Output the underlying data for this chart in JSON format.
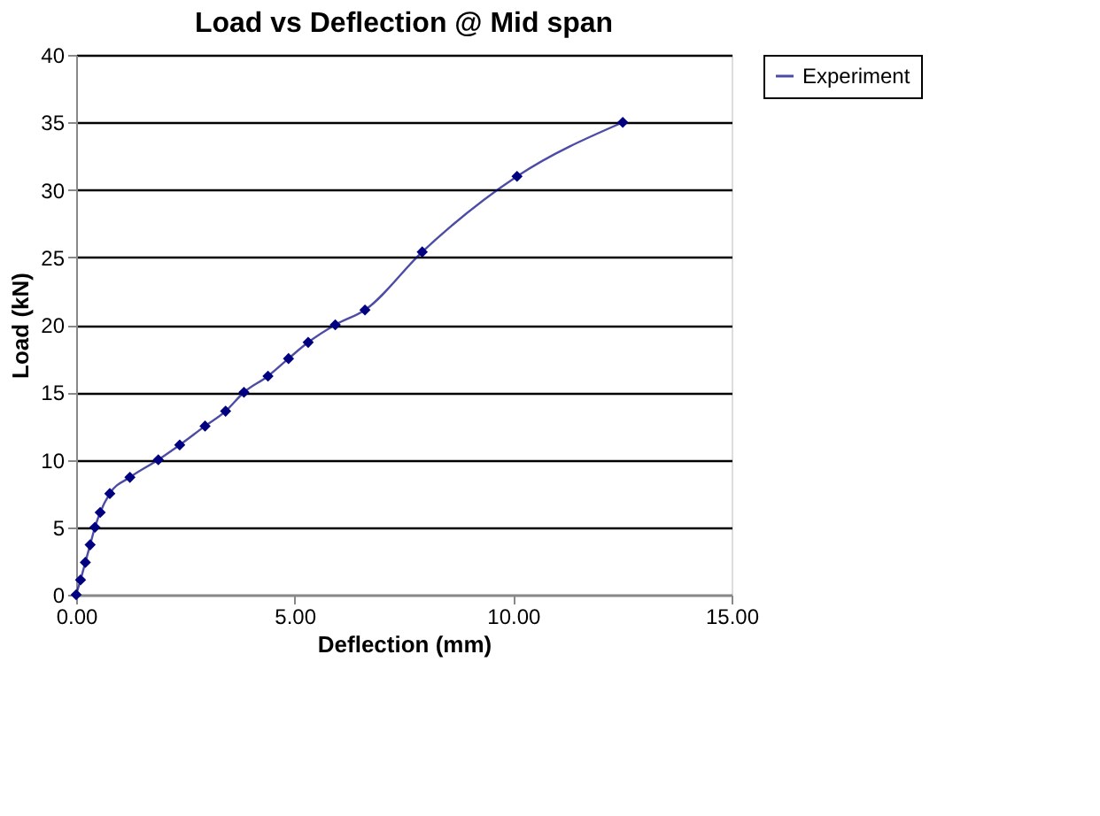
{
  "chart_data": {
    "type": "line",
    "title": "Load vs Deflection @ Mid span",
    "xlabel": "Deflection (mm)",
    "ylabel": "Load (kN)",
    "x": [
      0,
      0.1,
      0.21,
      0.32,
      0.43,
      0.55,
      0.77,
      1.23,
      1.88,
      2.37,
      2.95,
      3.42,
      3.84,
      4.39,
      4.86,
      5.31,
      5.93,
      6.61,
      7.92,
      10.09,
      12.51
    ],
    "series": [
      {
        "name": "Experiment",
        "color": "#000080",
        "values": [
          0,
          1.1,
          2.4,
          3.7,
          5.0,
          6.1,
          7.5,
          8.7,
          10.0,
          11.1,
          12.5,
          13.6,
          15.0,
          16.2,
          17.5,
          18.7,
          20.0,
          21.1,
          25.4,
          31.0,
          35.0
        ]
      }
    ],
    "xlim": [
      0,
      15
    ],
    "xticks": [
      {
        "value": 0,
        "label": "0.00"
      },
      {
        "value": 5,
        "label": "5.00"
      },
      {
        "value": 10,
        "label": "10.00"
      },
      {
        "value": 15,
        "label": "15.00"
      }
    ],
    "ylim": [
      0,
      40
    ],
    "yticks": [
      0,
      5,
      10,
      15,
      20,
      25,
      30,
      35,
      40
    ],
    "grid": "y",
    "legend": "right",
    "marker": "diamond",
    "line_style": "solid"
  }
}
